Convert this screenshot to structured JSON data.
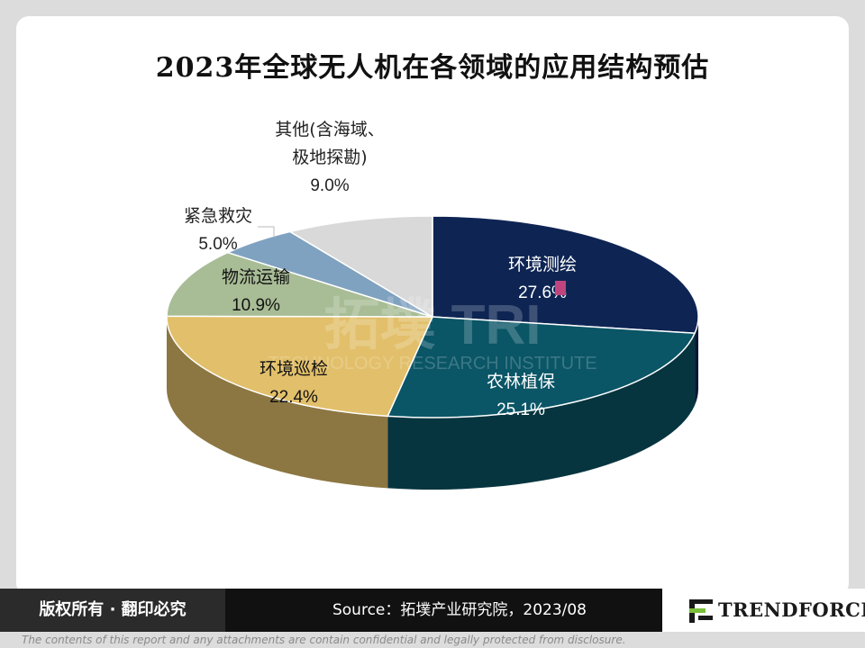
{
  "chart_data": {
    "type": "pie",
    "title": "2023年全球无人机在各领域的应用结构预估",
    "slices": [
      {
        "label": "环境测绘",
        "value": 27.6,
        "display": "27.6%",
        "color": "#0e2554"
      },
      {
        "label": "农林植保",
        "value": 25.1,
        "display": "25.1%",
        "color": "#0a5566"
      },
      {
        "label": "环境巡检",
        "value": 22.4,
        "display": "22.4%",
        "color": "#e2bf6a"
      },
      {
        "label": "物流运输",
        "value": 10.9,
        "display": "10.9%",
        "color": "#a8bd96"
      },
      {
        "label": "紧急救灾",
        "value": 5.0,
        "display": "5.0%",
        "color": "#7fa2c0"
      },
      {
        "label": "其他(含海域、\n极地探勘)",
        "value": 9.0,
        "display": "9.0%",
        "color": "#d9d9d9"
      }
    ]
  },
  "watermark": {
    "logo": "拓墣 TRI",
    "line": "TECHNOLOGY RESEARCH INSTITUTE"
  },
  "footer": {
    "copyright": "版权所有 · 翻印必究",
    "source": "Source：拓墣产业研究院，2023/08",
    "brand": "TRENDFORCE",
    "disclaimer": "The contents of this report and any attachments are contain confidential and legally protected from disclosure."
  }
}
